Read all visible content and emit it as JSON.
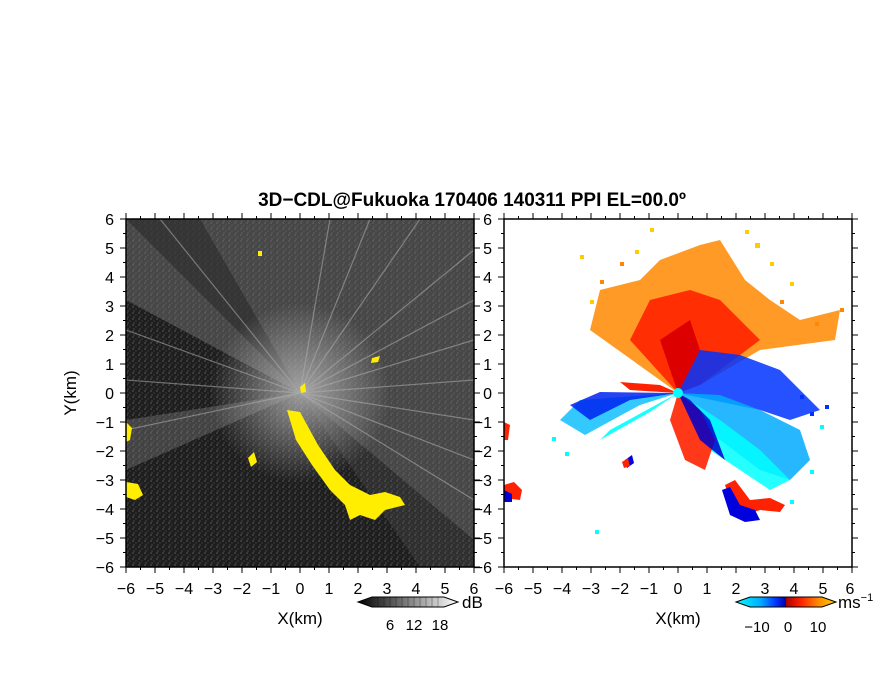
{
  "chart_data": {
    "type": "heatmap",
    "title": "3D−CDL@Fukuoka 170406 140311 PPI EL=00.0º",
    "panels": [
      {
        "name": "snr",
        "xlabel": "X(km)",
        "ylabel": "Y(km)",
        "xlim": [
          -6,
          6
        ],
        "ylim": [
          -6,
          6
        ],
        "xticks": [
          "−6",
          "−5",
          "−4",
          "−3",
          "−2",
          "−1",
          "0",
          "1",
          "2",
          "3",
          "4",
          "5",
          "6"
        ],
        "yticks": [
          "6",
          "5",
          "4",
          "3",
          "2",
          "1",
          "0",
          "−1",
          "−2",
          "−3",
          "−4",
          "−5",
          "−6"
        ],
        "background_color": "#222222",
        "highlight_color": "#ffee00",
        "colorbar": {
          "unit": "dB",
          "ticks": [
            "6",
            "12",
            "18"
          ],
          "range": [
            0,
            24
          ],
          "colors": [
            "#000000",
            "#ffffff"
          ]
        }
      },
      {
        "name": "velocity",
        "xlabel": "X(km)",
        "xlim": [
          -6,
          6
        ],
        "ylim": [
          -6,
          6
        ],
        "xticks": [
          "−6",
          "−5",
          "−4",
          "−3",
          "−2",
          "−1",
          "0",
          "1",
          "2",
          "3",
          "4",
          "5",
          "6"
        ],
        "yticks": [
          "6",
          "5",
          "4",
          "3",
          "2",
          "1",
          "0",
          "−1",
          "−2",
          "−3",
          "−4",
          "−5",
          "−6"
        ],
        "background_color": "#ffffff",
        "colorbar": {
          "unit": "ms",
          "unit_exponent": "−1",
          "ticks": [
            "−10",
            "0",
            "10"
          ],
          "range": [
            -15,
            15
          ],
          "colors": [
            "#00ffff",
            "#00aaff",
            "#0033ff",
            "#0000aa",
            "#aa0000",
            "#ff2200",
            "#ff8800",
            "#ffcc00"
          ]
        }
      }
    ],
    "grid": false
  }
}
